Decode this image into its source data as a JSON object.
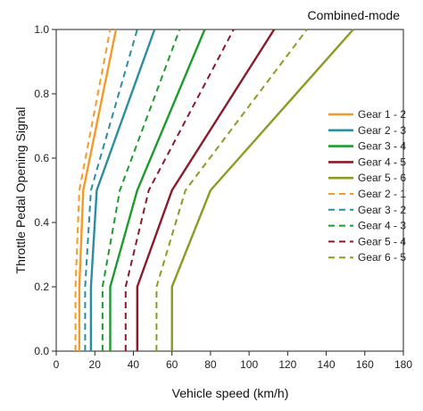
{
  "chart_data": {
    "type": "line",
    "title": "Combined-mode",
    "xlabel": "Vehicle speed (km/h)",
    "ylabel": "Throttle Pedal Opening Signal",
    "xlim": [
      0,
      180
    ],
    "ylim": [
      0,
      1.0
    ],
    "xticks": [
      0,
      20,
      40,
      60,
      80,
      100,
      120,
      140,
      160,
      180
    ],
    "yticks": [
      0.0,
      0.2,
      0.4,
      0.6,
      0.8,
      1.0
    ],
    "xtick_labels": [
      "0",
      "20",
      "40",
      "60",
      "80",
      "100",
      "120",
      "140",
      "160",
      "180"
    ],
    "ytick_labels": [
      "0.0",
      "0.2",
      "0.4",
      "0.6",
      "0.8",
      "1.0"
    ],
    "legend_position": "right",
    "series": [
      {
        "name": "Gear 1 - 2",
        "color": "#f39a2c",
        "dash": false,
        "points": [
          [
            12,
            0
          ],
          [
            12,
            0.2
          ],
          [
            14,
            0.5
          ],
          [
            31,
            1.0
          ]
        ]
      },
      {
        "name": "Gear 2 - 3",
        "color": "#2b8ea0",
        "dash": false,
        "points": [
          [
            18,
            0
          ],
          [
            18,
            0.2
          ],
          [
            21,
            0.5
          ],
          [
            51,
            1.0
          ]
        ]
      },
      {
        "name": "Gear 3 - 4",
        "color": "#1f9a2f",
        "dash": false,
        "points": [
          [
            28,
            0
          ],
          [
            28,
            0.2
          ],
          [
            42,
            0.5
          ],
          [
            77,
            1.0
          ]
        ]
      },
      {
        "name": "Gear 4 - 5",
        "color": "#8b1a2a",
        "dash": false,
        "points": [
          [
            42,
            0
          ],
          [
            42,
            0.2
          ],
          [
            60,
            0.5
          ],
          [
            113,
            1.0
          ]
        ]
      },
      {
        "name": "Gear 5 - 6",
        "color": "#8d9a22",
        "dash": false,
        "points": [
          [
            60,
            0
          ],
          [
            60,
            0.2
          ],
          [
            80,
            0.5
          ],
          [
            154,
            1.0
          ]
        ]
      },
      {
        "name": "Gear 2 - 1",
        "color": "#f39a2c",
        "dash": true,
        "points": [
          [
            10,
            0
          ],
          [
            10,
            0.2
          ],
          [
            12,
            0.5
          ],
          [
            28,
            1.0
          ]
        ]
      },
      {
        "name": "Gear 3 - 2",
        "color": "#2b8ea0",
        "dash": true,
        "points": [
          [
            15,
            0
          ],
          [
            15,
            0.2
          ],
          [
            18,
            0.5
          ],
          [
            42,
            1.0
          ]
        ]
      },
      {
        "name": "Gear 4 - 3",
        "color": "#1f9a2f",
        "dash": true,
        "points": [
          [
            24,
            0
          ],
          [
            24,
            0.2
          ],
          [
            33,
            0.5
          ],
          [
            64,
            1.0
          ]
        ]
      },
      {
        "name": "Gear 5 - 4",
        "color": "#8b1a2a",
        "dash": true,
        "points": [
          [
            36,
            0
          ],
          [
            36,
            0.2
          ],
          [
            48,
            0.5
          ],
          [
            92,
            1.0
          ]
        ]
      },
      {
        "name": "Gear 6 - 5",
        "color": "#8d9a22",
        "dash": true,
        "points": [
          [
            52,
            0
          ],
          [
            52,
            0.2
          ],
          [
            67,
            0.5
          ],
          [
            130,
            1.0
          ]
        ]
      }
    ]
  }
}
